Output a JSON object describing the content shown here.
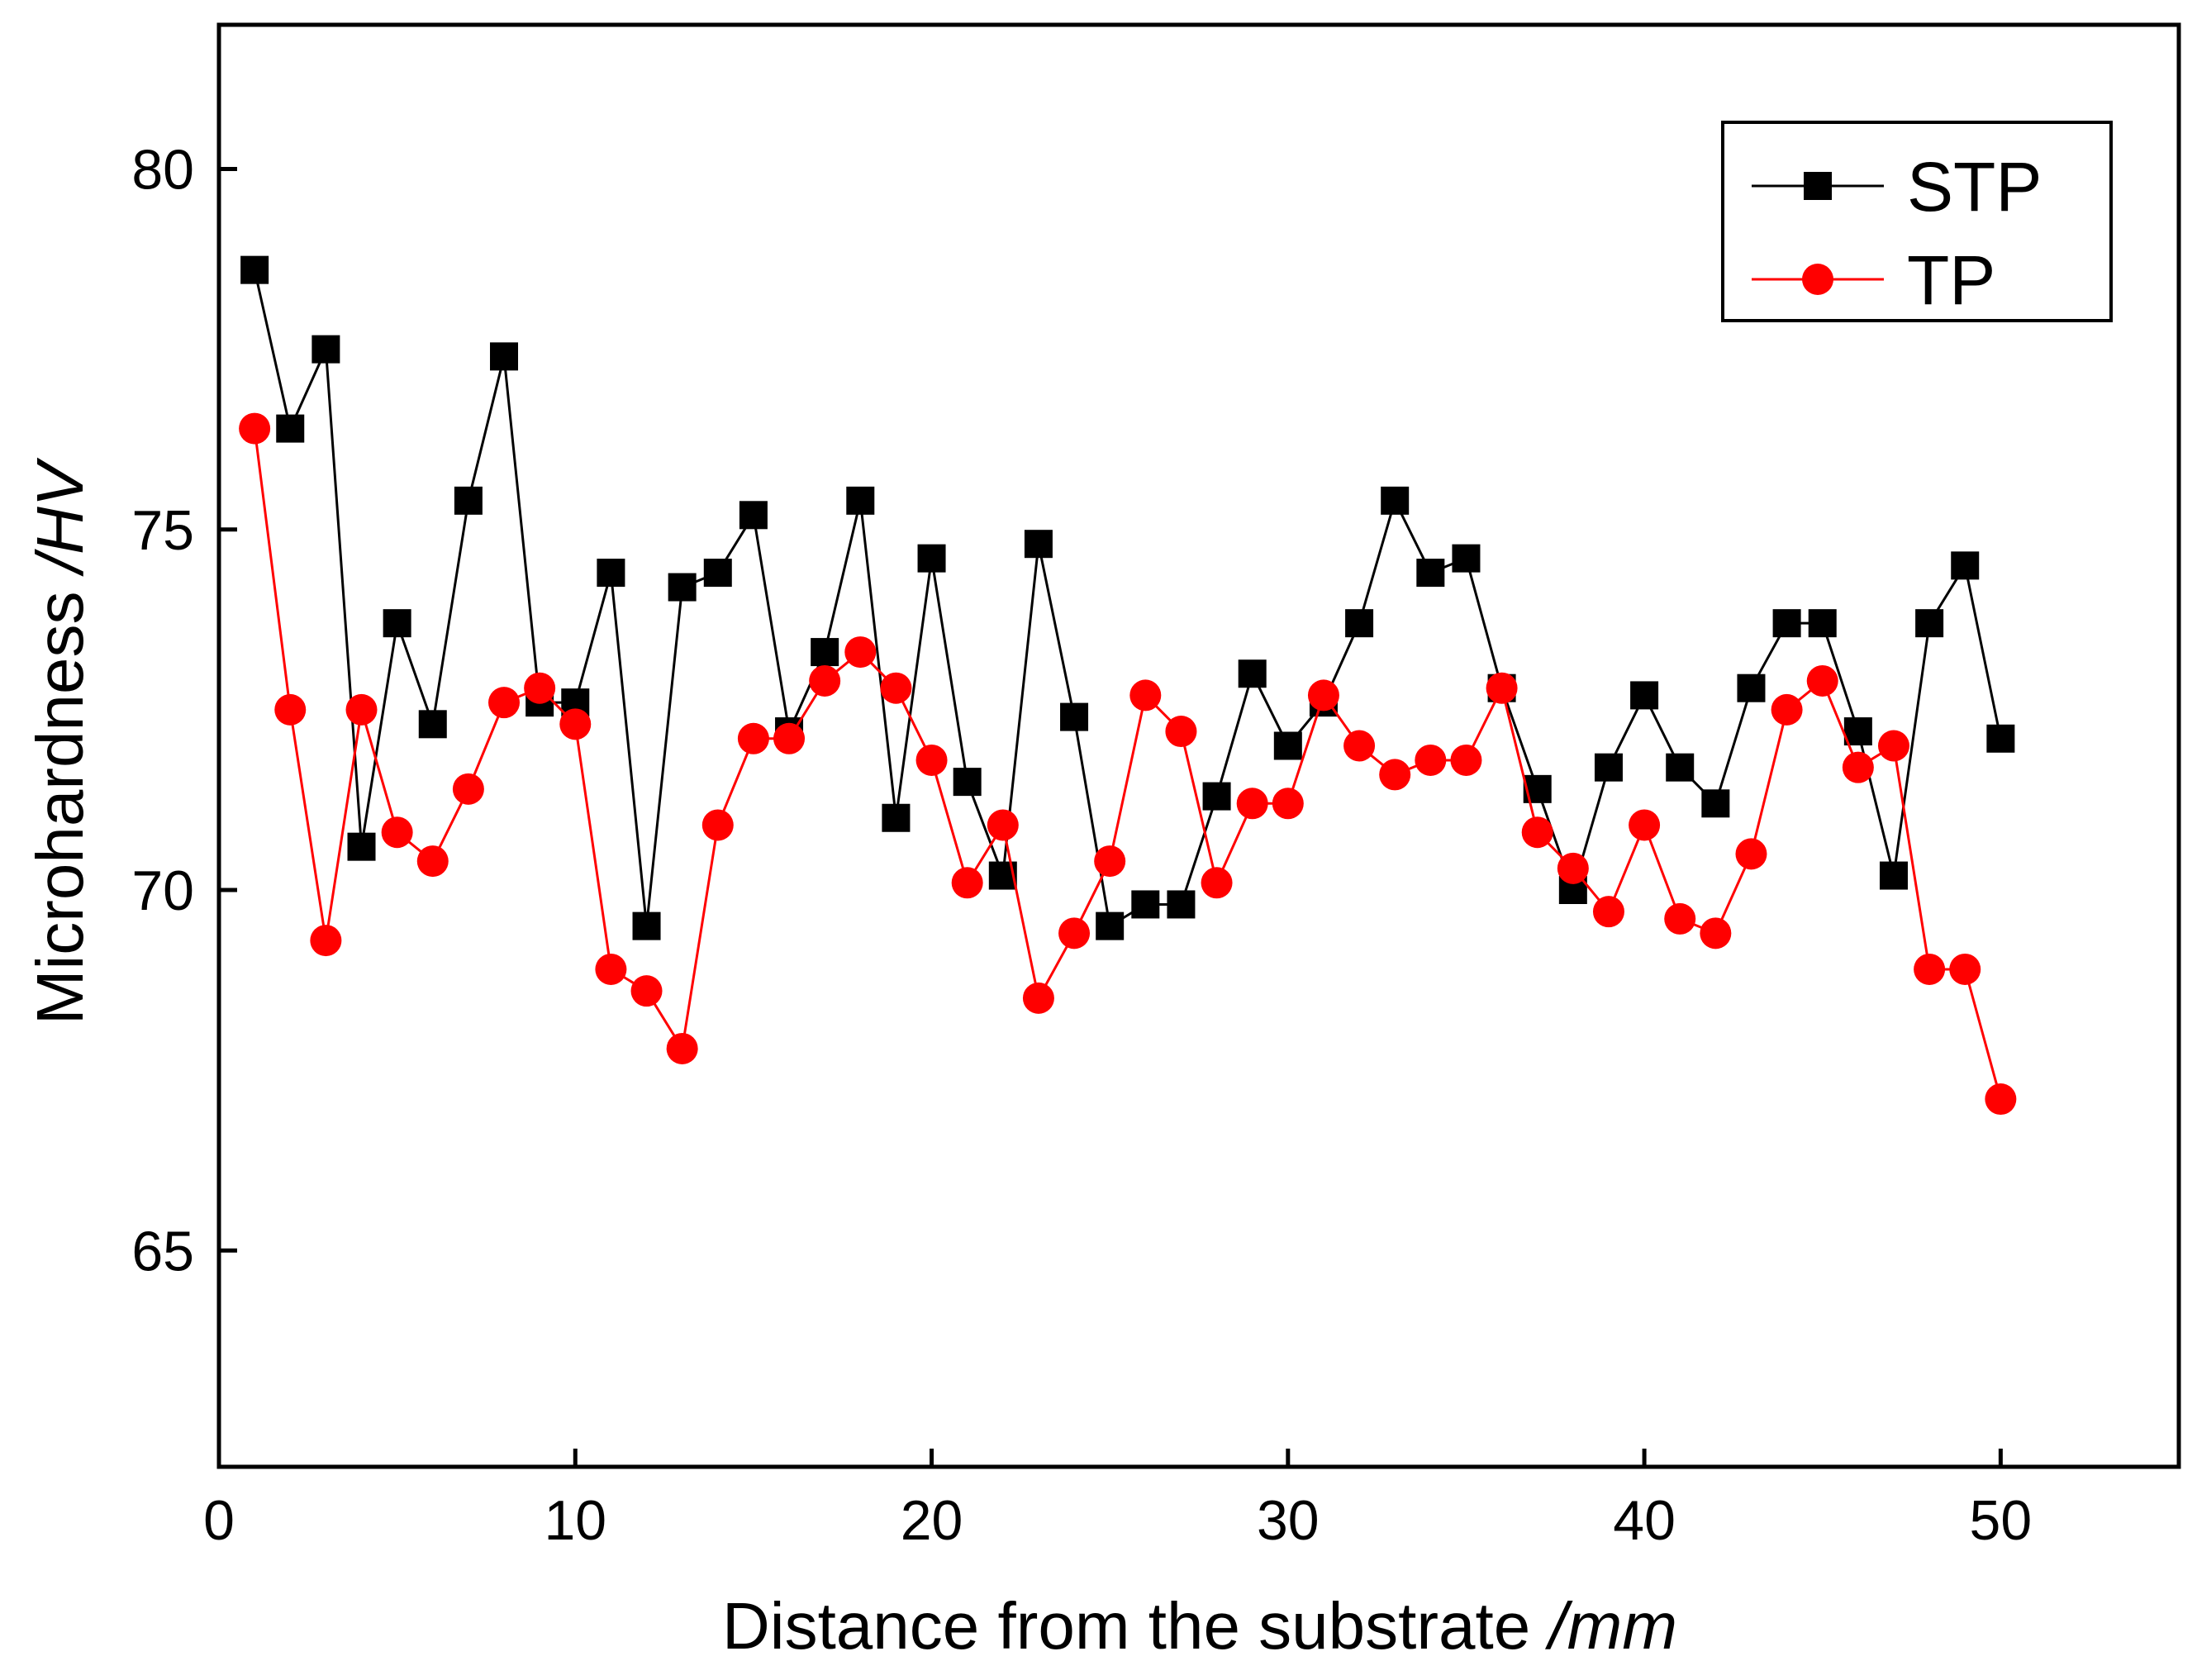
{
  "chart_data": {
    "type": "line",
    "title": "",
    "xlabel": "Distance from the substrate",
    "xlabel_unit": "/mm",
    "ylabel": "Microhardness",
    "ylabel_unit": "/HV",
    "xlim": [
      0,
      55
    ],
    "ylim": [
      62,
      82
    ],
    "xticks": [
      0,
      10,
      20,
      30,
      40,
      50
    ],
    "yticks": [
      65,
      70,
      75,
      80
    ],
    "grid": false,
    "legend_position": "top-right",
    "x": [
      1,
      2,
      3,
      4,
      5,
      6,
      7,
      8,
      9,
      10,
      11,
      12,
      13,
      14,
      15,
      16,
      17,
      18,
      19,
      20,
      21,
      22,
      23,
      24,
      25,
      26,
      27,
      28,
      29,
      30,
      31,
      32,
      33,
      34,
      35,
      36,
      37,
      38,
      39,
      40,
      41,
      42,
      43,
      44,
      45,
      46,
      47,
      48,
      49,
      50
    ],
    "series": [
      {
        "name": "STP",
        "color": "#000000",
        "marker": "square",
        "values": [
          78.6,
          76.4,
          77.5,
          70.6,
          73.7,
          72.3,
          75.4,
          77.4,
          72.6,
          72.6,
          74.4,
          69.5,
          74.2,
          74.4,
          75.2,
          72.2,
          73.3,
          75.4,
          71.0,
          74.6,
          71.5,
          70.2,
          74.8,
          72.4,
          69.5,
          69.8,
          69.8,
          71.3,
          73.0,
          72.0,
          72.6,
          73.7,
          75.4,
          74.4,
          74.6,
          72.8,
          71.4,
          70.0,
          71.7,
          72.7,
          71.7,
          71.2,
          72.8,
          73.7,
          73.7,
          72.2,
          70.2,
          73.7,
          74.5,
          72.1
        ]
      },
      {
        "name": "TP",
        "color": "#ff0000",
        "marker": "circle",
        "values": [
          76.4,
          72.5,
          69.3,
          72.5,
          70.8,
          70.4,
          71.4,
          72.6,
          72.8,
          72.3,
          68.9,
          68.6,
          67.8,
          70.9,
          72.1,
          72.1,
          72.9,
          73.3,
          72.8,
          71.8,
          70.1,
          70.9,
          68.5,
          69.4,
          70.4,
          72.7,
          72.2,
          70.1,
          71.2,
          71.2,
          72.7,
          72.0,
          71.6,
          71.8,
          71.8,
          72.8,
          70.8,
          70.3,
          69.7,
          70.9,
          69.6,
          69.4,
          70.5,
          72.5,
          72.9,
          71.7,
          72.0,
          68.9,
          68.9,
          67.1
        ]
      }
    ]
  }
}
